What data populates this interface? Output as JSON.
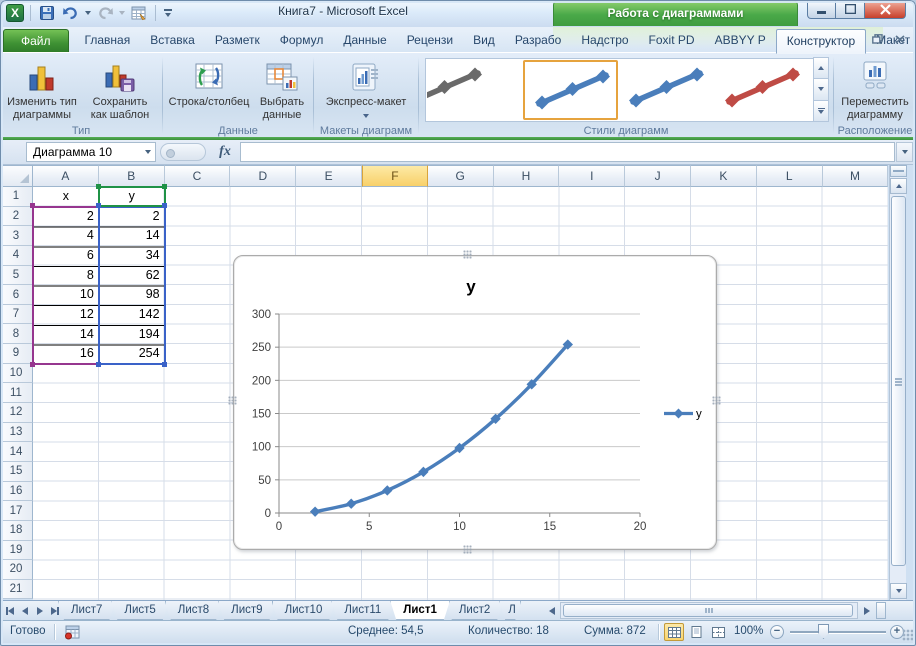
{
  "window": {
    "title": "Книга7 - Microsoft Excel",
    "contextual_title": "Работа с диаграммами"
  },
  "qat_icons": [
    "excel-logo-icon",
    "save-icon",
    "undo-icon",
    "redo-icon",
    "datasheet-icon",
    "customize-qat-icon"
  ],
  "ribbon_tabs": [
    {
      "label": "Файл",
      "type": "file"
    },
    {
      "label": "Главная"
    },
    {
      "label": "Вставка"
    },
    {
      "label": "Разметк"
    },
    {
      "label": "Формул"
    },
    {
      "label": "Данные"
    },
    {
      "label": "Рецензи"
    },
    {
      "label": "Вид"
    },
    {
      "label": "Разрабо"
    },
    {
      "label": "Надстро"
    },
    {
      "label": "Foxit PD"
    },
    {
      "label": "ABBYY P"
    },
    {
      "label": "Конструктор",
      "active": true,
      "contextual": true
    },
    {
      "label": "Макет",
      "contextual": true
    },
    {
      "label": "Формат",
      "contextual": true
    }
  ],
  "ribbon": {
    "groups": {
      "type": {
        "label": "Тип",
        "change_chart_type": "Изменить тип\nдиаграммы",
        "save_as_template": "Сохранить\nкак шаблон"
      },
      "data": {
        "label": "Данные",
        "switch_row_column": "Строка/столбец",
        "select_data": "Выбрать\nданные"
      },
      "layouts": {
        "label": "Макеты диаграмм",
        "quick_layout": "Экспресс-макет"
      },
      "styles": {
        "label": "Стили диаграмм",
        "items": [
          {
            "name": "chart-style-dark",
            "color": "#6a6a6a",
            "selected": false,
            "cut": true
          },
          {
            "name": "chart-style-blue",
            "color": "#4a7ebb",
            "selected": true,
            "cut": false
          },
          {
            "name": "chart-style-blue-2",
            "color": "#4a7ebb",
            "selected": false,
            "cut": false
          },
          {
            "name": "chart-style-red",
            "color": "#bf4b45",
            "selected": false,
            "cut": false
          }
        ]
      },
      "location": {
        "label": "Расположение",
        "move_chart": "Переместить\nдиаграмму"
      }
    }
  },
  "formula_bar": {
    "name_box": "Диаграмма 10",
    "fx_label": "fx",
    "formula": ""
  },
  "columns": {
    "letters": [
      "A",
      "B",
      "C",
      "D",
      "E",
      "F",
      "G",
      "H",
      "I",
      "J",
      "K",
      "L",
      "M"
    ],
    "selected": "F"
  },
  "row_numbers": [
    1,
    2,
    3,
    4,
    5,
    6,
    7,
    8,
    9,
    10,
    11,
    12,
    13,
    14,
    15,
    16,
    17,
    18,
    19,
    20,
    21
  ],
  "data_table": {
    "headers": [
      "x",
      "y"
    ],
    "rows": [
      [
        2,
        2
      ],
      [
        4,
        14
      ],
      [
        6,
        34
      ],
      [
        8,
        62
      ],
      [
        10,
        98
      ],
      [
        12,
        142
      ],
      [
        14,
        194
      ],
      [
        16,
        254
      ]
    ]
  },
  "sheet_tabs": {
    "items": [
      "Лист7",
      "Лист5",
      "Лист8",
      "Лист9",
      "Лист10",
      "Лист11",
      "Лист1",
      "Лист2"
    ],
    "active": "Лист1",
    "truncated": "Л"
  },
  "status_bar": {
    "mode": "Готово",
    "average": "Среднее: 54,5",
    "count": "Количество: 18",
    "sum": "Сумма: 872",
    "zoom": "100%",
    "view_icons": [
      "normal-view-icon",
      "page-layout-view-icon",
      "page-break-view-icon"
    ]
  },
  "colors": {
    "accent_green": "#3fa73f",
    "selection_blue": "#3a62c8",
    "selection_purple": "#96368f",
    "selection_green": "#1f9246",
    "column_highlight": "#f8d069",
    "chart_line": "#4a7ebb"
  },
  "chart_data": {
    "type": "line",
    "title": "y",
    "x": [
      2,
      4,
      6,
      8,
      10,
      12,
      14,
      16
    ],
    "series": [
      {
        "name": "y",
        "color": "#4a7ebb",
        "values": [
          2,
          14,
          34,
          62,
          98,
          142,
          194,
          254
        ]
      }
    ],
    "xlim": [
      0,
      20
    ],
    "ylim": [
      0,
      300
    ],
    "x_ticks": [
      0,
      5,
      10,
      15,
      20
    ],
    "y_ticks": [
      0,
      50,
      100,
      150,
      200,
      250,
      300
    ],
    "grid": "horizontal",
    "legend_position": "right",
    "marker": "diamond",
    "smooth": true
  }
}
